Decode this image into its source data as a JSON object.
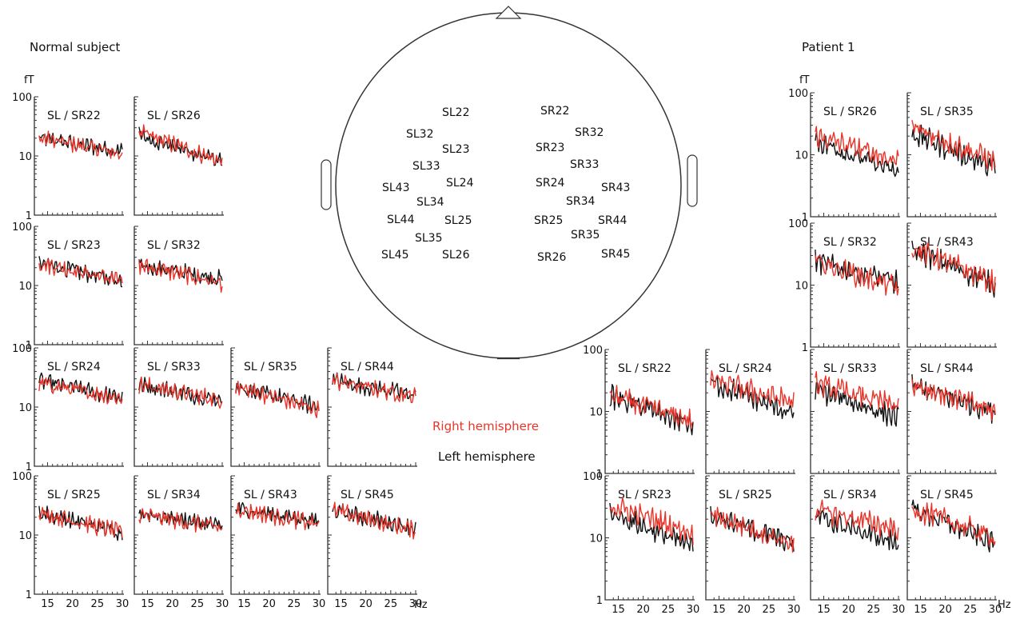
{
  "colors": {
    "right": "#e8352a",
    "left": "#111111",
    "axis": "#333333"
  },
  "legend": {
    "right": "Right hemisphere",
    "left": "Left hemisphere"
  },
  "y_unit": "fT",
  "x_unit": "Hz",
  "y_ticks": [
    "100",
    "10",
    "1"
  ],
  "x_ticks": [
    "15",
    "20",
    "25",
    "30"
  ],
  "head_map": {
    "left": [
      "SL22",
      "SL32",
      "SL23",
      "SL33",
      "SL43",
      "SL24",
      "SL34",
      "SL44",
      "SL25",
      "SL35",
      "SL45",
      "SL26"
    ],
    "right": [
      "SR22",
      "SR32",
      "SR23",
      "SR33",
      "SR24",
      "SR43",
      "SR34",
      "SR25",
      "SR44",
      "SR35",
      "SR26",
      "SR45"
    ]
  },
  "panels": {
    "normal": {
      "title": "Normal subject",
      "plots": [
        "SL / SR22",
        "SL / SR26",
        "SL / SR23",
        "SL / SR32",
        "SL / SR24",
        "SL / SR33",
        "SL / SR35",
        "SL / SR44",
        "SL / SR25",
        "SL / SR34",
        "SL / SR43",
        "SL / SR45"
      ]
    },
    "patient": {
      "title": "Patient 1",
      "plots": [
        "SL / SR26",
        "SL / SR35",
        "SL / SR32",
        "SL / SR43",
        "SL / SR22",
        "SL / SR24",
        "SL / SR33",
        "SL / SR44",
        "SL / SR23",
        "SL / SR25",
        "SL / SR34",
        "SL / SR45"
      ]
    }
  },
  "chart_data": {
    "type": "line",
    "xlabel": "Hz",
    "ylabel": "fT",
    "xlim": [
      13,
      30
    ],
    "ylim": [
      1,
      100
    ],
    "y_scale": "log",
    "series_names": [
      "Right hemisphere",
      "Left hemisphere"
    ],
    "trend": {
      "normal": [
        {
          "right": [
            20,
            11
          ],
          "left": [
            20,
            12
          ]
        },
        {
          "right": [
            25,
            8
          ],
          "left": [
            22,
            8
          ]
        },
        {
          "right": [
            24,
            12
          ],
          "left": [
            24,
            12
          ]
        },
        {
          "right": [
            22,
            11
          ],
          "left": [
            22,
            13
          ]
        },
        {
          "right": [
            25,
            14
          ],
          "left": [
            28,
            14
          ]
        },
        {
          "right": [
            24,
            13
          ],
          "left": [
            24,
            13
          ]
        },
        {
          "right": [
            22,
            9
          ],
          "left": [
            22,
            10
          ]
        },
        {
          "right": [
            28,
            15
          ],
          "left": [
            28,
            16
          ]
        },
        {
          "right": [
            24,
            11
          ],
          "left": [
            24,
            11
          ]
        },
        {
          "right": [
            22,
            13
          ],
          "left": [
            24,
            14
          ]
        },
        {
          "right": [
            28,
            15
          ],
          "left": [
            28,
            17
          ]
        },
        {
          "right": [
            26,
            12
          ],
          "left": [
            26,
            13
          ]
        }
      ],
      "patient": [
        {
          "right": [
            20,
            8
          ],
          "left": [
            17,
            5
          ]
        },
        {
          "right": [
            28,
            8
          ],
          "left": [
            22,
            6
          ]
        },
        {
          "right": [
            24,
            9
          ],
          "left": [
            24,
            11
          ]
        },
        {
          "right": [
            40,
            11
          ],
          "left": [
            38,
            10
          ]
        },
        {
          "right": [
            18,
            7
          ],
          "left": [
            18,
            6
          ]
        },
        {
          "right": [
            32,
            14
          ],
          "left": [
            30,
            9
          ]
        },
        {
          "right": [
            28,
            12
          ],
          "left": [
            22,
            8
          ]
        },
        {
          "right": [
            28,
            10
          ],
          "left": [
            26,
            10
          ]
        },
        {
          "right": [
            34,
            12
          ],
          "left": [
            26,
            7
          ]
        },
        {
          "right": [
            24,
            8
          ],
          "left": [
            24,
            8
          ]
        },
        {
          "right": [
            28,
            14
          ],
          "left": [
            22,
            8
          ]
        },
        {
          "right": [
            30,
            10
          ],
          "left": [
            30,
            8
          ]
        }
      ]
    }
  }
}
